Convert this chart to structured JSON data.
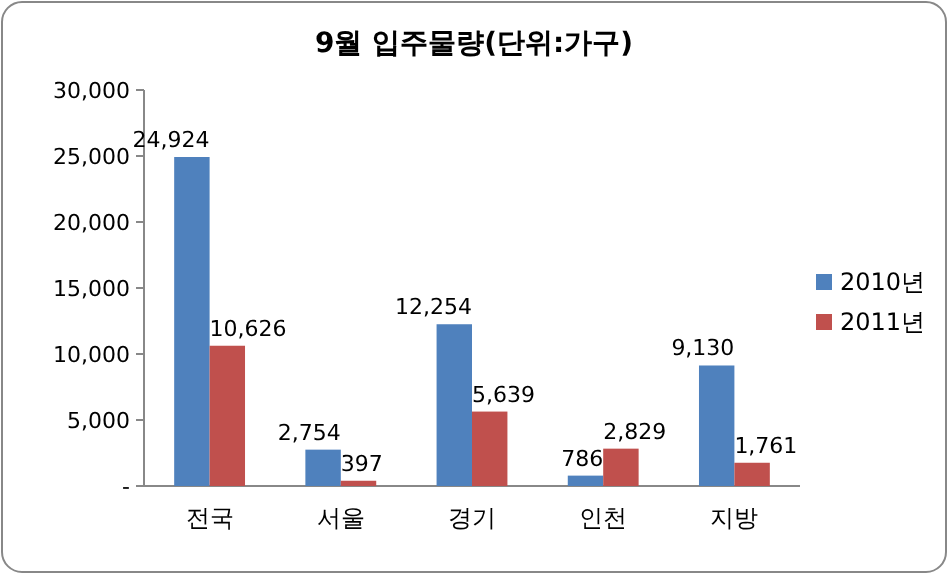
{
  "chart_data": {
    "type": "bar",
    "title": "9월 입주물량(단위:가구)",
    "categories": [
      "전국",
      "서울",
      "경기",
      "인천",
      "지방"
    ],
    "series": [
      {
        "name": "2010년",
        "color": "#4f81bd",
        "values": [
          24924,
          2754,
          12254,
          786,
          9130
        ],
        "value_labels": [
          "24,924",
          "2,754",
          "12,254",
          "786",
          "9,130"
        ]
      },
      {
        "name": "2011년",
        "color": "#c0504d",
        "values": [
          10626,
          397,
          5639,
          2829,
          1761
        ],
        "value_labels": [
          "10,626",
          "397",
          "5,639",
          "2,829",
          "1,761"
        ]
      }
    ],
    "ylim": [
      0,
      30000
    ],
    "yticks": [
      {
        "value": 0,
        "label": "-"
      },
      {
        "value": 5000,
        "label": "5,000"
      },
      {
        "value": 10000,
        "label": "10,000"
      },
      {
        "value": 15000,
        "label": "15,000"
      },
      {
        "value": 20000,
        "label": "20,000"
      },
      {
        "value": 25000,
        "label": "25,000"
      },
      {
        "value": 30000,
        "label": "30,000"
      }
    ],
    "grid": false,
    "legend": "right"
  }
}
